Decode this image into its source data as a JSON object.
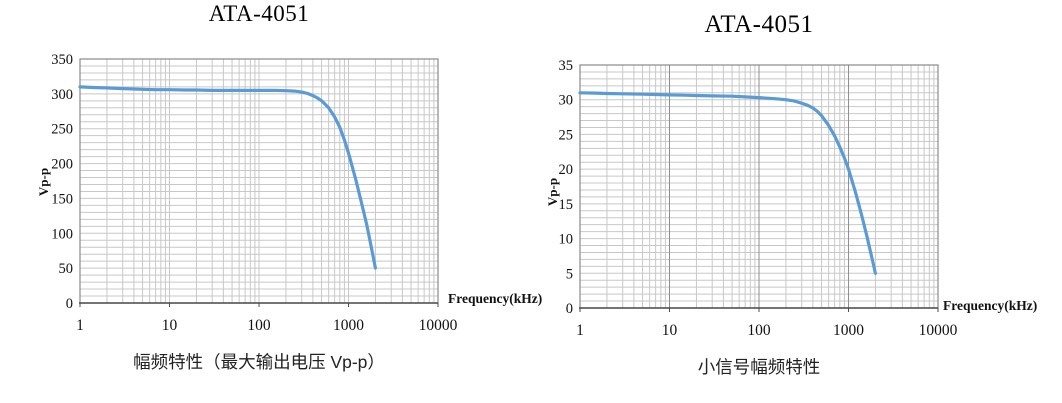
{
  "page": {
    "background": "#ffffff"
  },
  "chart_data": [
    {
      "type": "line",
      "title": "ATA-4051",
      "caption": "幅频特性（最大输出电压 Vp-p）",
      "xlabel": "Frequency(kHz)",
      "ylabel": "Vp-p",
      "x_scale": "log",
      "xlim": [
        1,
        10000
      ],
      "ylim": [
        0,
        350
      ],
      "x_ticks": [
        1,
        10,
        100,
        1000,
        10000
      ],
      "y_ticks": [
        0,
        50,
        100,
        150,
        200,
        250,
        300,
        350
      ],
      "y_minor_step": 10,
      "grid": "minor-and-major",
      "legend": "none",
      "line_color": "#5B9BD5",
      "grid_minor_color": "#c8c8c8",
      "x_major_grid_color": "#c8c8c8",
      "border_color": "#8a8a8a",
      "axis_color": "#4d4d4d",
      "points": [
        [
          1,
          310
        ],
        [
          1.5,
          309
        ],
        [
          2,
          308.5
        ],
        [
          3,
          307.5
        ],
        [
          5,
          306.5
        ],
        [
          7,
          306
        ],
        [
          10,
          306
        ],
        [
          15,
          305.5
        ],
        [
          20,
          305.5
        ],
        [
          30,
          305
        ],
        [
          50,
          305
        ],
        [
          70,
          305
        ],
        [
          100,
          305
        ],
        [
          150,
          305
        ],
        [
          200,
          304.5
        ],
        [
          250,
          304
        ],
        [
          300,
          302.5
        ],
        [
          350,
          300.5
        ],
        [
          400,
          297.5
        ],
        [
          450,
          294
        ],
        [
          500,
          290
        ],
        [
          600,
          280
        ],
        [
          700,
          267
        ],
        [
          800,
          252
        ],
        [
          900,
          234
        ],
        [
          1000,
          215
        ],
        [
          1200,
          178
        ],
        [
          1400,
          143
        ],
        [
          1600,
          112
        ],
        [
          1800,
          80
        ],
        [
          2000,
          50
        ]
      ]
    },
    {
      "type": "line",
      "title": "ATA-4051",
      "caption": "小信号幅频特性",
      "xlabel": "Frequency(kHz)",
      "ylabel": "Vp-p",
      "x_scale": "log",
      "xlim": [
        1,
        10000
      ],
      "ylim": [
        0,
        35
      ],
      "x_ticks": [
        1,
        10,
        100,
        1000,
        10000
      ],
      "y_ticks": [
        0,
        5,
        10,
        15,
        20,
        25,
        30,
        35
      ],
      "y_minor_step": 1,
      "grid": "minor-and-major",
      "legend": "none",
      "line_color": "#5B9BD5",
      "grid_minor_color": "#c8c8c8",
      "x_major_grid_color": "#8f8f8f",
      "border_color": "#8a8a8a",
      "axis_color": "#4d4d4d",
      "points": [
        [
          1,
          31
        ],
        [
          1.5,
          30.95
        ],
        [
          2,
          30.9
        ],
        [
          3,
          30.85
        ],
        [
          5,
          30.8
        ],
        [
          7,
          30.75
        ],
        [
          10,
          30.7
        ],
        [
          15,
          30.65
        ],
        [
          20,
          30.6
        ],
        [
          30,
          30.55
        ],
        [
          50,
          30.5
        ],
        [
          70,
          30.4
        ],
        [
          100,
          30.3
        ],
        [
          150,
          30.15
        ],
        [
          200,
          30
        ],
        [
          250,
          29.8
        ],
        [
          300,
          29.5
        ],
        [
          350,
          29.2
        ],
        [
          400,
          28.8
        ],
        [
          450,
          28.3
        ],
        [
          500,
          27.7
        ],
        [
          600,
          26.3
        ],
        [
          700,
          24.8
        ],
        [
          800,
          23.2
        ],
        [
          900,
          21.6
        ],
        [
          1000,
          20
        ],
        [
          1200,
          16.6
        ],
        [
          1400,
          13.4
        ],
        [
          1600,
          10.4
        ],
        [
          1800,
          7.6
        ],
        [
          2000,
          5
        ]
      ]
    }
  ]
}
